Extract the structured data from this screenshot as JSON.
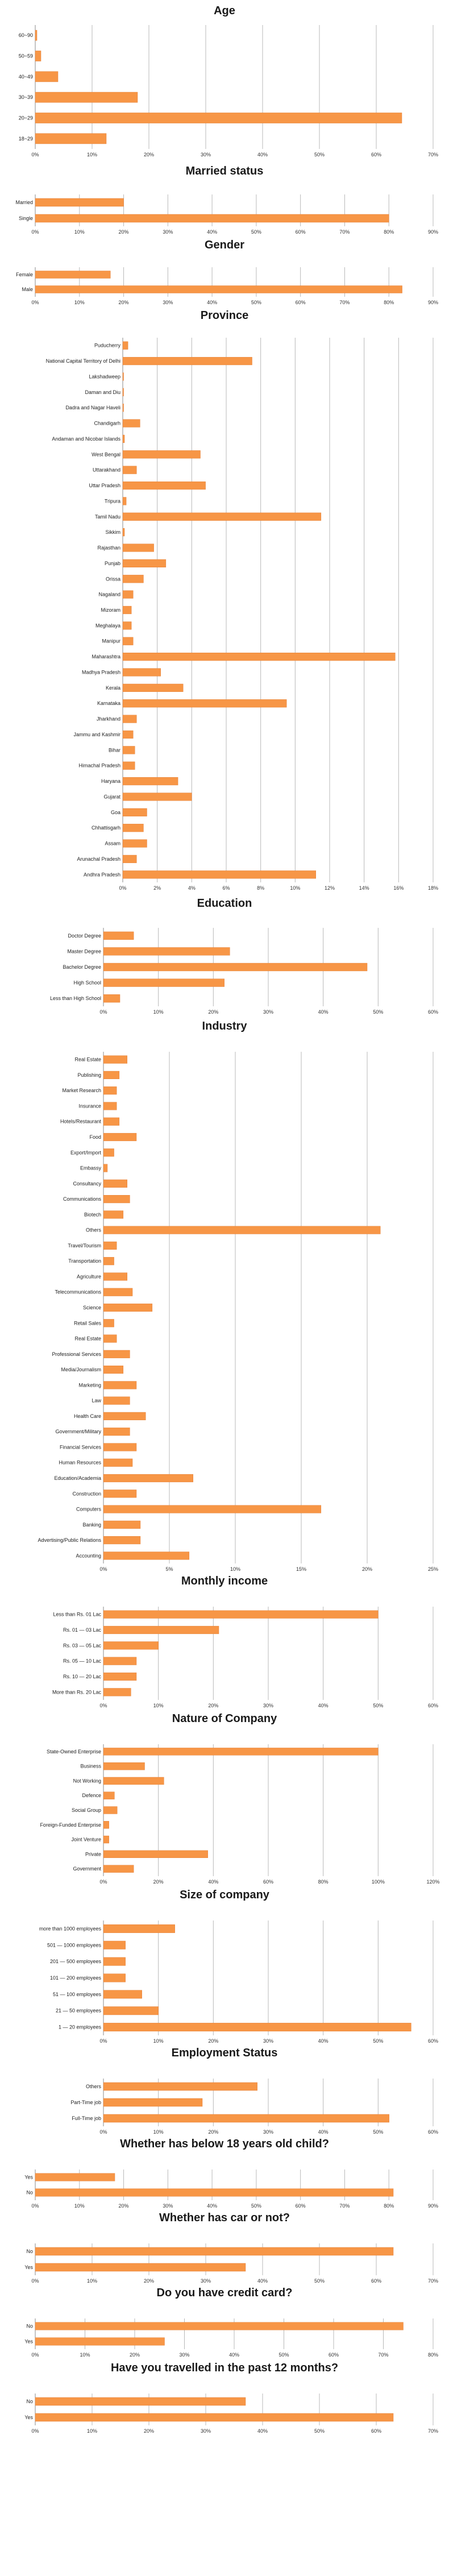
{
  "colors": {
    "bar": "#f79646",
    "bar_stroke": "#e3803a",
    "grid": "#b8b8b8",
    "title": "#1a1a1a"
  },
  "chart_data": [
    {
      "type": "bar",
      "orientation": "horizontal",
      "title": "Age",
      "categories": [
        "60~90",
        "50~59",
        "40~49",
        "30~39",
        "20~29",
        "18~29"
      ],
      "values": [
        0.3,
        1.0,
        4.0,
        18.0,
        64.5,
        12.5
      ],
      "xlim": [
        0,
        70
      ],
      "xticks": [
        "0%",
        "10%",
        "20%",
        "30%",
        "40%",
        "50%",
        "60%",
        "70%"
      ],
      "grid": true
    },
    {
      "type": "bar",
      "orientation": "horizontal",
      "title": "Married status",
      "categories": [
        "Married",
        "Single"
      ],
      "values": [
        20,
        80
      ],
      "xlim": [
        0,
        90
      ],
      "xticks": [
        "0%",
        "10%",
        "20%",
        "30%",
        "40%",
        "50%",
        "60%",
        "70%",
        "80%",
        "90%"
      ],
      "grid": true
    },
    {
      "type": "bar",
      "orientation": "horizontal",
      "title": "Gender",
      "categories": [
        "Female",
        "Male"
      ],
      "values": [
        17,
        83
      ],
      "xlim": [
        0,
        90
      ],
      "xticks": [
        "0%",
        "10%",
        "20%",
        "30%",
        "40%",
        "50%",
        "60%",
        "70%",
        "80%",
        "90%"
      ],
      "grid": true
    },
    {
      "type": "bar",
      "orientation": "horizontal",
      "title": "Province",
      "categories": [
        "Puducherry",
        "National Capital Territory of Delhi",
        "Lakshadweep",
        "Daman and Diu",
        "Dadra and Nagar Haveli",
        "Chandigarh",
        "Andaman and Nicobar Islands",
        "West Bengal",
        "Uttarakhand",
        "Uttar Pradesh",
        "Tripura",
        "Tamil Nadu",
        "Sikkim",
        "Rajasthan",
        "Punjab",
        "Orissa",
        "Nagaland",
        "Mizoram",
        "Meghalaya",
        "Manipur",
        "Maharashtra",
        "Madhya Pradesh",
        "Kerala",
        "Karnataka",
        "Jharkhand",
        "Jammu and Kashmir",
        "Bihar",
        "Himachal Pradesh",
        "Haryana",
        "Gujarat",
        "Goa",
        "Chhattisgarh",
        "Assam",
        "Arunachal Pradesh",
        "Andhra Pradesh"
      ],
      "values": [
        0.3,
        7.5,
        0.05,
        0.05,
        0.05,
        1.0,
        0.1,
        4.5,
        0.8,
        4.8,
        0.2,
        11.5,
        0.1,
        1.8,
        2.5,
        1.2,
        0.6,
        0.5,
        0.5,
        0.6,
        15.8,
        2.2,
        3.5,
        9.5,
        0.8,
        0.6,
        0.7,
        0.7,
        3.2,
        4.0,
        1.4,
        1.2,
        1.4,
        0.8,
        11.2
      ],
      "xlim": [
        0,
        18
      ],
      "xticks": [
        "0%",
        "2%",
        "4%",
        "6%",
        "8%",
        "10%",
        "12%",
        "14%",
        "16%",
        "18%"
      ],
      "grid": true
    },
    {
      "type": "bar",
      "orientation": "horizontal",
      "title": "Education",
      "categories": [
        "Doctor Degree",
        "Master Degree",
        "Bachelor Degree",
        "High School",
        "Less than High School"
      ],
      "values": [
        5.5,
        23,
        48,
        22,
        3
      ],
      "xlim": [
        0,
        60
      ],
      "xticks": [
        "0%",
        "10%",
        "20%",
        "30%",
        "40%",
        "50%",
        "60%"
      ],
      "grid": true
    },
    {
      "type": "bar",
      "orientation": "horizontal",
      "title": "Industry",
      "categories": [
        "Real Estate",
        "Publishing",
        "Market Research",
        "Insurance",
        "Hotels/Restaurant",
        "Food",
        "Export/Import",
        "Embassy",
        "Consultancy",
        "Communications",
        "Biotech",
        "Others",
        "Travel/Tourism",
        "Transportation",
        "Agriculture",
        "Telecommunications",
        "Science",
        "Retail Sales",
        "Real Estate",
        "Professional Services",
        "Media/Journalism",
        "Marketing",
        "Law",
        "Health Care",
        "Government/Military",
        "Financial Services",
        "Human Resources",
        "Education/Academia",
        "Construction",
        "Computers",
        "Banking",
        "Advertising/Public Relations",
        "Accounting"
      ],
      "values": [
        1.8,
        1.2,
        1.0,
        1.0,
        1.2,
        2.5,
        0.8,
        0.3,
        1.8,
        2.0,
        1.5,
        21.0,
        1.0,
        0.8,
        1.8,
        2.2,
        3.7,
        0.8,
        1.0,
        2.0,
        1.5,
        2.5,
        2.0,
        3.2,
        2.0,
        2.5,
        2.2,
        6.8,
        2.5,
        16.5,
        2.8,
        2.8,
        6.5
      ],
      "xlim": [
        0,
        25
      ],
      "xticks": [
        "0%",
        "5%",
        "10%",
        "15%",
        "20%",
        "25%"
      ],
      "grid": true
    },
    {
      "type": "bar",
      "orientation": "horizontal",
      "title": "Monthly income",
      "categories": [
        "Less than Rs. 01 Lac",
        "Rs. 01 — 03 Lac",
        "Rs. 03 — 05 Lac",
        "Rs. 05 — 10 Lac",
        "Rs. 10 — 20 Lac",
        "More than Rs. 20 Lac"
      ],
      "values": [
        50,
        21,
        10,
        6,
        6,
        5
      ],
      "xlim": [
        0,
        60
      ],
      "xticks": [
        "0%",
        "10%",
        "20%",
        "30%",
        "40%",
        "50%",
        "60%"
      ],
      "grid": true
    },
    {
      "type": "bar",
      "orientation": "horizontal",
      "title": "Nature of Company",
      "categories": [
        "State-Owned Enterprise",
        "Business",
        "Not Working",
        "Defence",
        "Social Group",
        "Foreign-Funded Enterprise",
        "Joint Venture",
        "Private",
        "Government"
      ],
      "values": [
        100,
        15,
        22,
        4,
        5,
        2,
        2,
        38,
        11
      ],
      "xlim": [
        0,
        120
      ],
      "xticks": [
        "0%",
        "20%",
        "40%",
        "60%",
        "80%",
        "100%",
        "120%"
      ],
      "grid": true
    },
    {
      "type": "bar",
      "orientation": "horizontal",
      "title": "Size of company",
      "categories": [
        "more than 1000 employees",
        "501 — 1000 employees",
        "201 — 500 employees",
        "101 — 200 employees",
        "51 — 100 employees",
        "21 — 50 employees",
        "1 — 20 employees"
      ],
      "values": [
        13,
        4,
        4,
        4,
        7,
        10,
        56
      ],
      "xlim": [
        0,
        60
      ],
      "xticks": [
        "0%",
        "10%",
        "20%",
        "30%",
        "40%",
        "50%",
        "60%"
      ],
      "grid": true
    },
    {
      "type": "bar",
      "orientation": "horizontal",
      "title": "Employment Status",
      "categories": [
        "Others",
        "Part-Time job",
        "Full-Time job"
      ],
      "values": [
        28,
        18,
        52
      ],
      "xlim": [
        0,
        60
      ],
      "xticks": [
        "0%",
        "10%",
        "20%",
        "30%",
        "40%",
        "50%",
        "60%"
      ],
      "grid": true
    },
    {
      "type": "bar",
      "orientation": "horizontal",
      "title": "Whether has below 18 years old child?",
      "categories": [
        "Yes",
        "No"
      ],
      "values": [
        18,
        81
      ],
      "xlim": [
        0,
        90
      ],
      "xticks": [
        "0%",
        "10%",
        "20%",
        "30%",
        "40%",
        "50%",
        "60%",
        "70%",
        "80%",
        "90%"
      ],
      "grid": true
    },
    {
      "type": "bar",
      "orientation": "horizontal",
      "title": "Whether has car or not?",
      "categories": [
        "No",
        "Yes"
      ],
      "values": [
        63,
        37
      ],
      "xlim": [
        0,
        70
      ],
      "xticks": [
        "0%",
        "10%",
        "20%",
        "30%",
        "40%",
        "50%",
        "60%",
        "70%"
      ],
      "grid": true
    },
    {
      "type": "bar",
      "orientation": "horizontal",
      "title": "Do you have credit card?",
      "categories": [
        "No",
        "Yes"
      ],
      "values": [
        74,
        26
      ],
      "xlim": [
        0,
        80
      ],
      "xticks": [
        "0%",
        "10%",
        "20%",
        "30%",
        "40%",
        "50%",
        "60%",
        "70%",
        "80%"
      ],
      "grid": true
    },
    {
      "type": "bar",
      "orientation": "horizontal",
      "title": "Have you travelled in the past 12 months?",
      "categories": [
        "No",
        "Yes"
      ],
      "values": [
        37,
        63
      ],
      "xlim": [
        0,
        70
      ],
      "xticks": [
        "0%",
        "10%",
        "20%",
        "30%",
        "40%",
        "50%",
        "60%",
        "70%"
      ],
      "grid": true
    }
  ]
}
